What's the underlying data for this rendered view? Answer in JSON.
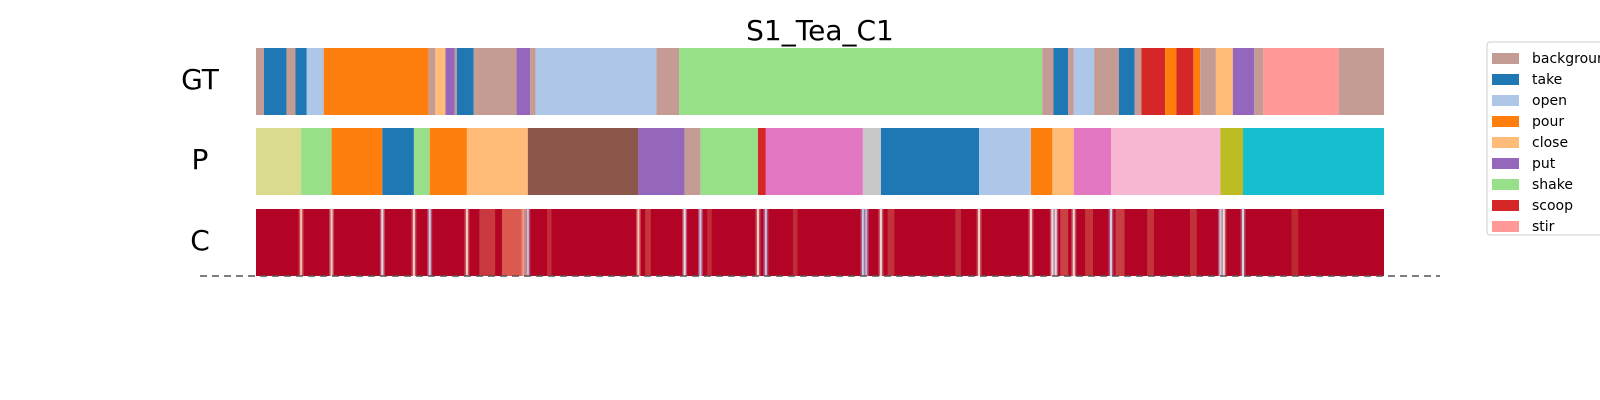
{
  "chart_data": {
    "type": "segmentation-timeline",
    "title": "S1_Tea_C1",
    "x_range": [
      0,
      1000
    ],
    "rows": [
      {
        "label": "GT",
        "segments": [
          {
            "start": 0,
            "end": 7,
            "action": "background"
          },
          {
            "start": 7,
            "end": 27,
            "action": "take"
          },
          {
            "start": 27,
            "end": 35,
            "action": "background"
          },
          {
            "start": 35,
            "end": 45,
            "action": "take"
          },
          {
            "start": 45,
            "end": 60,
            "action": "open"
          },
          {
            "start": 60,
            "end": 153,
            "action": "pour"
          },
          {
            "start": 153,
            "end": 159,
            "action": "background"
          },
          {
            "start": 159,
            "end": 168,
            "action": "close"
          },
          {
            "start": 168,
            "end": 176,
            "action": "put"
          },
          {
            "start": 176,
            "end": 178,
            "action": "background"
          },
          {
            "start": 178,
            "end": 193,
            "action": "take"
          },
          {
            "start": 193,
            "end": 231,
            "action": "background"
          },
          {
            "start": 231,
            "end": 243,
            "action": "put"
          },
          {
            "start": 243,
            "end": 248,
            "action": "background"
          },
          {
            "start": 248,
            "end": 355,
            "action": "open"
          },
          {
            "start": 355,
            "end": 375,
            "action": "background"
          },
          {
            "start": 375,
            "end": 697,
            "action": "shake"
          },
          {
            "start": 697,
            "end": 707,
            "action": "background"
          },
          {
            "start": 707,
            "end": 720,
            "action": "take"
          },
          {
            "start": 720,
            "end": 725,
            "action": "background"
          },
          {
            "start": 725,
            "end": 743,
            "action": "open"
          },
          {
            "start": 743,
            "end": 765,
            "action": "background"
          },
          {
            "start": 765,
            "end": 779,
            "action": "take"
          },
          {
            "start": 779,
            "end": 785,
            "action": "background"
          },
          {
            "start": 785,
            "end": 806,
            "action": "scoop"
          },
          {
            "start": 806,
            "end": 816,
            "action": "pour"
          },
          {
            "start": 816,
            "end": 831,
            "action": "scoop"
          },
          {
            "start": 831,
            "end": 837,
            "action": "pour"
          },
          {
            "start": 837,
            "end": 851,
            "action": "background"
          },
          {
            "start": 851,
            "end": 866,
            "action": "close"
          },
          {
            "start": 866,
            "end": 885,
            "action": "put"
          },
          {
            "start": 885,
            "end": 893,
            "action": "background"
          },
          {
            "start": 893,
            "end": 960,
            "action": "stir"
          },
          {
            "start": 960,
            "end": 1000,
            "action": "background"
          }
        ]
      },
      {
        "label": "P",
        "segments": [
          {
            "start": 0,
            "end": 40,
            "color": "#dbdb8d"
          },
          {
            "start": 40,
            "end": 67,
            "color": "#98df8a"
          },
          {
            "start": 67,
            "end": 112,
            "color": "#ff7f0e"
          },
          {
            "start": 112,
            "end": 140,
            "color": "#1f77b4"
          },
          {
            "start": 140,
            "end": 154,
            "color": "#98df8a"
          },
          {
            "start": 154,
            "end": 187,
            "color": "#ff7f0e"
          },
          {
            "start": 187,
            "end": 241,
            "color": "#ffbb78"
          },
          {
            "start": 241,
            "end": 339,
            "color": "#8c564b"
          },
          {
            "start": 339,
            "end": 380,
            "color": "#9467bd"
          },
          {
            "start": 380,
            "end": 394,
            "color": "#c49c94"
          },
          {
            "start": 394,
            "end": 445,
            "color": "#98df8a"
          },
          {
            "start": 445,
            "end": 452,
            "color": "#d62728"
          },
          {
            "start": 452,
            "end": 538,
            "color": "#e377c2"
          },
          {
            "start": 538,
            "end": 554,
            "color": "#c7c7c7"
          },
          {
            "start": 554,
            "end": 641,
            "color": "#1f77b4"
          },
          {
            "start": 641,
            "end": 687,
            "color": "#aec7e8"
          },
          {
            "start": 687,
            "end": 706,
            "color": "#ff7f0e"
          },
          {
            "start": 706,
            "end": 725,
            "color": "#ffbb78"
          },
          {
            "start": 725,
            "end": 758,
            "color": "#e377c2"
          },
          {
            "start": 758,
            "end": 855,
            "color": "#f7b6d2"
          },
          {
            "start": 855,
            "end": 875,
            "color": "#bcbd22"
          },
          {
            "start": 875,
            "end": 1000,
            "color": "#17becf"
          }
        ]
      },
      {
        "label": "C",
        "base_color": "#b40426",
        "boundary_marks": [
          {
            "x": 40,
            "color": "#f0c0a8"
          },
          {
            "x": 67,
            "color": "#e8d0c8"
          },
          {
            "x": 112,
            "color": "#dde2ea"
          },
          {
            "x": 140,
            "color": "#f0d0c0"
          },
          {
            "x": 154,
            "color": "#c8d4ec"
          },
          {
            "x": 187,
            "color": "#f2d2c2"
          },
          {
            "x": 237,
            "color": "#e6a090"
          },
          {
            "x": 241,
            "color": "#b8c8e4"
          },
          {
            "x": 339,
            "color": "#f4c8b0"
          },
          {
            "x": 380,
            "color": "#e0e4ee"
          },
          {
            "x": 394,
            "color": "#c0ccea"
          },
          {
            "x": 445,
            "color": "#f0d4c8"
          },
          {
            "x": 452,
            "color": "#bcc6e6"
          },
          {
            "x": 538,
            "color": "#c0cce8"
          },
          {
            "x": 541,
            "color": "#b0bee4"
          },
          {
            "x": 554,
            "color": "#ead8d0"
          },
          {
            "x": 641,
            "color": "#f0d4c2"
          },
          {
            "x": 687,
            "color": "#f2d6c8"
          },
          {
            "x": 706,
            "color": "#e8e0dc"
          },
          {
            "x": 709,
            "color": "#d8dcea"
          },
          {
            "x": 725,
            "color": "#eed8cc"
          },
          {
            "x": 758,
            "color": "#c8d2ea"
          },
          {
            "x": 855,
            "color": "#c4cee8"
          },
          {
            "x": 858,
            "color": "#e8dcd6"
          },
          {
            "x": 875,
            "color": "#d0d6ea"
          }
        ],
        "soft_bands": [
          {
            "start": 218,
            "end": 240,
            "color": "#e8765e"
          },
          {
            "start": 198,
            "end": 212,
            "color": "#d04a48"
          },
          {
            "start": 258,
            "end": 262,
            "color": "#c83a40"
          },
          {
            "start": 345,
            "end": 350,
            "color": "#cc4444"
          },
          {
            "start": 400,
            "end": 404,
            "color": "#c63a3e"
          },
          {
            "start": 476,
            "end": 480,
            "color": "#c43a3e"
          },
          {
            "start": 560,
            "end": 566,
            "color": "#c84040"
          },
          {
            "start": 620,
            "end": 625,
            "color": "#c43c40"
          },
          {
            "start": 713,
            "end": 720,
            "color": "#d2554e"
          },
          {
            "start": 735,
            "end": 742,
            "color": "#c94642"
          },
          {
            "start": 762,
            "end": 770,
            "color": "#cf524c"
          },
          {
            "start": 790,
            "end": 796,
            "color": "#c84442"
          },
          {
            "start": 828,
            "end": 834,
            "color": "#c64040"
          },
          {
            "start": 918,
            "end": 924,
            "color": "#c03636"
          }
        ]
      }
    ],
    "legend": {
      "placement": "right",
      "items": [
        {
          "label": "background",
          "color": "#c49c94"
        },
        {
          "label": "take",
          "color": "#1f77b4"
        },
        {
          "label": "open",
          "color": "#aec7e8"
        },
        {
          "label": "pour",
          "color": "#ff7f0e"
        },
        {
          "label": "close",
          "color": "#ffbb78"
        },
        {
          "label": "put",
          "color": "#9467bd"
        },
        {
          "label": "shake",
          "color": "#98df8a"
        },
        {
          "label": "scoop",
          "color": "#d62728"
        },
        {
          "label": "stir",
          "color": "#ff9896"
        }
      ]
    },
    "baseline": {
      "style": "dashed",
      "color": "#555555"
    }
  }
}
